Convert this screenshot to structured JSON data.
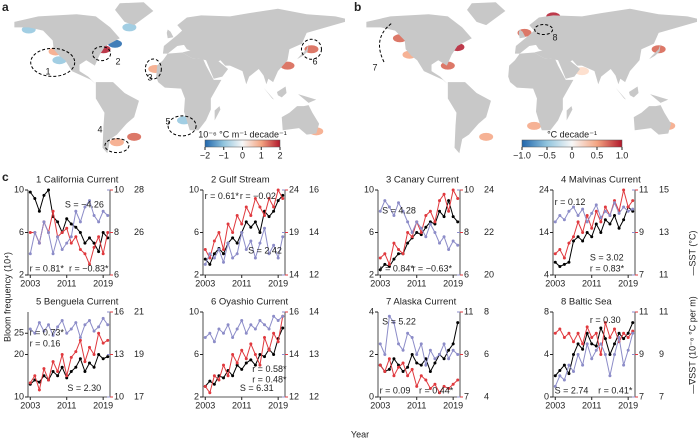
{
  "figure": {
    "panel_label": "c",
    "xlabel": "Year",
    "ylabel": "Bloom frequency (10⁴)",
    "y2label": "—∇SST (10⁻⁶ °C per m)",
    "y3label": "—SST (°C)",
    "y2color": "#e0393e",
    "y3color": "#8c8cc8"
  },
  "maps": [
    {
      "label": "a",
      "regions": [
        "1",
        "2",
        "3",
        "4",
        "5",
        "6"
      ],
      "colorbar": {
        "title": "10⁻⁶ °C m⁻¹ decade⁻¹",
        "lim": [
          -2,
          2
        ],
        "ticks": [
          {
            "value": -2,
            "label": "−2"
          },
          {
            "value": -1,
            "label": "−1"
          },
          0,
          1,
          2
        ]
      }
    },
    {
      "label": "b",
      "regions": [
        "7",
        "8"
      ],
      "colorbar": {
        "title": "°C decade⁻¹",
        "lim": [
          -1,
          1
        ],
        "ticks": [
          {
            "value": -1,
            "label": "−1.0"
          },
          {
            "value": -0.5,
            "label": "−0.5"
          },
          0,
          0.5,
          {
            "value": 1,
            "label": "1.0"
          }
        ]
      }
    }
  ],
  "chart_data": [
    {
      "type": "line",
      "title": "1 California Current",
      "x": [
        2003,
        2004,
        2005,
        2006,
        2007,
        2008,
        2009,
        2010,
        2011,
        2012,
        2013,
        2014,
        2015,
        2016,
        2017,
        2018,
        2019,
        2020
      ],
      "xlim": [
        2002.5,
        2020.5
      ],
      "xticks": [
        2003,
        2011,
        2019
      ],
      "ylim": [
        2,
        10
      ],
      "yticks": [
        2,
        6,
        10
      ],
      "y2lim": [
        6,
        10
      ],
      "y2ticks": [
        6,
        8,
        10
      ],
      "y3lim": [
        24,
        28
      ],
      "y3ticks": [
        26,
        28
      ],
      "series": [
        {
          "color": "#000000",
          "axis": "y",
          "values": [
            9.8,
            9.2,
            8,
            9.5,
            10,
            7.5,
            7,
            6,
            7.3,
            6.8,
            6.5,
            6,
            5,
            5.5,
            5,
            4.2,
            6,
            5.5
          ]
        },
        {
          "color": "#e0393e",
          "axis": "y2",
          "values": [
            8,
            8,
            7.5,
            8.5,
            8,
            9,
            7.8,
            8,
            8.2,
            7.5,
            7.8,
            7.2,
            7,
            6.5,
            7.3,
            7.8,
            7,
            8
          ]
        },
        {
          "color": "#8c8cc8",
          "axis": "y3",
          "values": [
            25,
            26,
            25.5,
            26.5,
            26,
            25,
            25.8,
            25.2,
            25.5,
            25.8,
            27,
            26.5,
            27.2,
            27.5,
            26.8,
            26.5,
            27,
            26.8
          ]
        }
      ],
      "annotations": [
        {
          "text": "S = −4.26",
          "color": "#000000"
        },
        {
          "text": "r = 0.81*",
          "color": "#e0393e"
        },
        {
          "text": "r = −0.83*",
          "color": "#8c8cc8"
        }
      ]
    },
    {
      "type": "line",
      "title": "2 Gulf Stream",
      "x": [
        2003,
        2004,
        2005,
        2006,
        2007,
        2008,
        2009,
        2010,
        2011,
        2012,
        2013,
        2014,
        2015,
        2016,
        2017,
        2018,
        2019,
        2020
      ],
      "xlim": [
        2002.5,
        2020.5
      ],
      "xticks": [
        2003,
        2011,
        2019
      ],
      "ylim": [
        2,
        10
      ],
      "yticks": [
        2,
        6,
        10
      ],
      "y2lim": [
        14,
        24
      ],
      "y2ticks": [
        14,
        19,
        24
      ],
      "y3lim": [
        12,
        16
      ],
      "y3ticks": [
        12,
        14,
        16
      ],
      "series": [
        {
          "color": "#000000",
          "axis": "y",
          "values": [
            3.5,
            3,
            4,
            4.5,
            4,
            5,
            5.5,
            5,
            6,
            7,
            6.5,
            7,
            6,
            8,
            7.5,
            8,
            9,
            9.5
          ]
        },
        {
          "color": "#e0393e",
          "axis": "y2",
          "values": [
            17,
            16,
            18,
            19,
            17,
            20,
            19,
            21,
            20,
            22,
            21,
            23,
            22,
            21,
            23,
            22,
            24,
            23
          ]
        },
        {
          "color": "#8c8cc8",
          "axis": "y3",
          "values": [
            12.5,
            13,
            12.8,
            13.2,
            12.6,
            13.5,
            12.8,
            13,
            14,
            13.2,
            13.6,
            12.8,
            13.5,
            14.2,
            13,
            13.4,
            12.8,
            13.8
          ]
        }
      ],
      "annotations": [
        {
          "text": "r = 0.61*",
          "color": "#e0393e"
        },
        {
          "text": "r = −0.02",
          "color": "#8c8cc8"
        },
        {
          "text": "S = 2.42",
          "color": "#000000"
        }
      ]
    },
    {
      "type": "line",
      "title": "3 Canary Current",
      "x": [
        2003,
        2004,
        2005,
        2006,
        2007,
        2008,
        2009,
        2010,
        2011,
        2012,
        2013,
        2014,
        2015,
        2016,
        2017,
        2018,
        2019,
        2020
      ],
      "xlim": [
        2002.5,
        2020.5
      ],
      "xticks": [
        2003,
        2011,
        2019
      ],
      "ylim": [
        2,
        10
      ],
      "yticks": [
        2,
        6,
        10
      ],
      "y2lim": [
        6,
        10
      ],
      "y2ticks": [
        6,
        8,
        10
      ],
      "y3lim": [
        20,
        24
      ],
      "y3ticks": [
        20,
        22,
        24
      ],
      "series": [
        {
          "color": "#000000",
          "axis": "y",
          "values": [
            2.5,
            3,
            2.8,
            3.5,
            4,
            4,
            5,
            5.5,
            6,
            5.8,
            6.5,
            7,
            6.8,
            8,
            7.5,
            9,
            7.5,
            7
          ]
        },
        {
          "color": "#e0393e",
          "axis": "y2",
          "values": [
            6.8,
            7,
            6.5,
            7.5,
            7.2,
            7,
            8,
            7.8,
            8.5,
            8,
            8.8,
            9,
            8.5,
            9.5,
            9.8,
            9,
            10,
            9.6
          ]
        },
        {
          "color": "#8c8cc8",
          "axis": "y3",
          "values": [
            23,
            23.5,
            23.2,
            22.8,
            23.4,
            23,
            22.5,
            22,
            22.5,
            22.2,
            21.8,
            22.4,
            22,
            21.5,
            21.8,
            21.2,
            21.6,
            21.4
          ]
        }
      ],
      "annotations": [
        {
          "text": "S = 4.28",
          "color": "#000000"
        },
        {
          "text": "r = 0.84*",
          "color": "#e0393e"
        },
        {
          "text": "r = −0.63*",
          "color": "#8c8cc8"
        }
      ]
    },
    {
      "type": "line",
      "title": "4 Malvinas Current",
      "x": [
        2003,
        2004,
        2005,
        2006,
        2007,
        2008,
        2009,
        2010,
        2011,
        2012,
        2013,
        2014,
        2015,
        2016,
        2017,
        2018,
        2019,
        2020
      ],
      "xlim": [
        2002.5,
        2020.5
      ],
      "xticks": [
        2003,
        2011,
        2019
      ],
      "ylim": [
        4,
        24
      ],
      "yticks": [
        4,
        14,
        24
      ],
      "y2lim": [
        7,
        11
      ],
      "y2ticks": [
        7,
        9,
        11
      ],
      "y3lim": [
        11,
        15
      ],
      "y3ticks": [
        11,
        13,
        15
      ],
      "series": [
        {
          "color": "#000000",
          "axis": "y",
          "values": [
            7,
            6,
            6.5,
            7,
            12,
            13,
            12,
            14,
            13,
            16,
            14,
            17,
            16,
            18,
            15,
            17,
            20,
            19
          ]
        },
        {
          "color": "#e0393e",
          "axis": "y2",
          "values": [
            8,
            8.2,
            7.8,
            8.5,
            8.8,
            9.5,
            9,
            9.8,
            9.2,
            10,
            9.5,
            10.2,
            9.8,
            10.5,
            10,
            11,
            10.2,
            10.5
          ]
        },
        {
          "color": "#8c8cc8",
          "axis": "y3",
          "values": [
            13.5,
            13.8,
            13.6,
            14,
            14.2,
            13.8,
            14.1,
            13.5,
            13.9,
            14.3,
            13.7,
            14,
            13.8,
            14.4,
            13.9,
            14.2,
            14,
            14.1
          ]
        }
      ],
      "annotations": [
        {
          "text": "r = 0.12",
          "color": "#8c8cc8"
        },
        {
          "text": "S = 3.02",
          "color": "#000000"
        },
        {
          "text": "r = 0.83*",
          "color": "#e0393e"
        }
      ]
    },
    {
      "type": "line",
      "title": "5 Benguela Current",
      "x": [
        2003,
        2004,
        2005,
        2006,
        2007,
        2008,
        2009,
        2010,
        2011,
        2012,
        2013,
        2014,
        2015,
        2016,
        2017,
        2018,
        2019,
        2020
      ],
      "xlim": [
        2002.5,
        2020.5
      ],
      "xticks": [
        2003,
        2011,
        2019
      ],
      "ylim": [
        10,
        30
      ],
      "yticks": [
        10,
        20,
        25
      ],
      "y2lim": [
        10,
        16
      ],
      "y2ticks": [
        10,
        13,
        16
      ],
      "y3lim": [
        17,
        21
      ],
      "y3ticks": [
        17,
        19,
        21
      ],
      "series": [
        {
          "color": "#000000",
          "axis": "y",
          "values": [
            13,
            14,
            13.5,
            15,
            14,
            16,
            15,
            17,
            14.5,
            16,
            17,
            19,
            16,
            18,
            17,
            20,
            19,
            19.5
          ]
        },
        {
          "color": "#e0393e",
          "axis": "y2",
          "values": [
            11,
            11.5,
            10.5,
            12,
            11.2,
            12.5,
            11.8,
            13,
            11.5,
            12.8,
            13.2,
            14,
            12.5,
            13.5,
            13,
            14.5,
            13.8,
            14
          ]
        },
        {
          "color": "#8c8cc8",
          "axis": "y3",
          "values": [
            20.2,
            20,
            20.5,
            20.1,
            20.4,
            19.9,
            20.3,
            20.6,
            20,
            20.2,
            20.5,
            19.8,
            20.4,
            20.6,
            20.1,
            20.3,
            20.7,
            20.4
          ]
        }
      ],
      "annotations": [
        {
          "text": "r = 0.73*",
          "color": "#e0393e"
        },
        {
          "text": "r = 0.16",
          "color": "#8c8cc8"
        },
        {
          "text": "S = 2.30",
          "color": "#000000"
        }
      ]
    },
    {
      "type": "line",
      "title": "6 Oyashio Current",
      "x": [
        2003,
        2004,
        2005,
        2006,
        2007,
        2008,
        2009,
        2010,
        2011,
        2012,
        2013,
        2014,
        2015,
        2016,
        2017,
        2018,
        2019,
        2020
      ],
      "xlim": [
        2002.5,
        2020.5
      ],
      "xticks": [
        2003,
        2011,
        2019
      ],
      "ylim": [
        2,
        10
      ],
      "yticks": [
        2,
        6,
        10
      ],
      "y2lim": [
        12,
        16
      ],
      "y2ticks": [
        12,
        14,
        16
      ],
      "y3lim": [
        12,
        14
      ],
      "y3ticks": [
        12,
        13,
        14
      ],
      "series": [
        {
          "color": "#000000",
          "axis": "y",
          "values": [
            3,
            3.5,
            3.2,
            4,
            3.8,
            4.5,
            4,
            5,
            4.6,
            5.2,
            5.5,
            5,
            6,
            5.8,
            6.5,
            6,
            7.5,
            8.5
          ]
        },
        {
          "color": "#e0393e",
          "axis": "y2",
          "values": [
            12.5,
            12.2,
            13,
            12.8,
            13.5,
            13,
            14,
            13.6,
            14.2,
            13.8,
            14.5,
            14,
            13.5,
            14.8,
            14.2,
            15,
            14.6,
            15.8
          ]
        },
        {
          "color": "#8c8cc8",
          "axis": "y3",
          "values": [
            13.4,
            13.5,
            13.3,
            13.6,
            13.5,
            13.7,
            13.4,
            13.6,
            13.8,
            13.5,
            13.7,
            13.6,
            13.8,
            13.7,
            13.6,
            13.9,
            13.8,
            13.9
          ]
        }
      ],
      "annotations": [
        {
          "text": "S = 6.31",
          "color": "#000000"
        },
        {
          "text": "r = 0.58*",
          "color": "#e0393e"
        },
        {
          "text": "r = 0.48*",
          "color": "#8c8cc8"
        }
      ]
    },
    {
      "type": "line",
      "title": "7 Alaska Current",
      "x": [
        2003,
        2004,
        2005,
        2006,
        2007,
        2008,
        2009,
        2010,
        2011,
        2012,
        2013,
        2014,
        2015,
        2016,
        2017,
        2018,
        2019,
        2020
      ],
      "xlim": [
        2002.5,
        2020.5
      ],
      "xticks": [
        2003,
        2011,
        2019
      ],
      "ylim": [
        0,
        4
      ],
      "yticks": [
        0,
        2,
        4
      ],
      "y2lim": [
        7,
        11
      ],
      "y2ticks": [
        7,
        9,
        11
      ],
      "y3lim": [
        4,
        8
      ],
      "y3ticks": [
        4,
        6,
        8
      ],
      "series": [
        {
          "color": "#000000",
          "axis": "y",
          "values": [
            1.5,
            1.2,
            1.3,
            1.8,
            1.5,
            1.2,
            1.4,
            2,
            1.6,
            1.5,
            1.8,
            1.2,
            1.6,
            2,
            1.8,
            2.2,
            2.5,
            3.5
          ]
        },
        {
          "color": "#e0393e",
          "axis": "y2",
          "values": [
            8.5,
            8.2,
            8.8,
            8,
            8.4,
            8.6,
            8,
            8.3,
            7.5,
            8,
            7.8,
            7.4,
            7.6,
            7.2,
            7.5,
            7.4,
            7.6,
            7.8
          ]
        },
        {
          "color": "#8c8cc8",
          "axis": "y3",
          "values": [
            6.5,
            6,
            7.8,
            7.5,
            6.5,
            6.2,
            7,
            6.8,
            6,
            6.5,
            5.5,
            6.2,
            5.8,
            6,
            6.5,
            5.8,
            6.2,
            6
          ]
        }
      ],
      "annotations": [
        {
          "text": "S = 5.22",
          "color": "#000000"
        },
        {
          "text": "r = 0.09",
          "color": "#e0393e"
        },
        {
          "text": "r = 0.44*",
          "color": "#8c8cc8"
        }
      ]
    },
    {
      "type": "line",
      "title": "8 Baltic Sea",
      "x": [
        2003,
        2004,
        2005,
        2006,
        2007,
        2008,
        2009,
        2010,
        2011,
        2012,
        2013,
        2014,
        2015,
        2016,
        2017,
        2018,
        2019,
        2020
      ],
      "xlim": [
        2002.5,
        2020.5
      ],
      "xticks": [
        2003,
        2011,
        2019
      ],
      "ylim": [
        0,
        8
      ],
      "yticks": [
        0,
        4,
        8
      ],
      "y2lim": [
        7,
        11
      ],
      "y2ticks": [
        7,
        9,
        11
      ],
      "y3lim": [
        7,
        11
      ],
      "y3ticks": [
        7,
        9,
        11
      ],
      "series": [
        {
          "color": "#000000",
          "axis": "y",
          "values": [
            2,
            2.5,
            3,
            2.2,
            4,
            5,
            4.5,
            6,
            5,
            4.8,
            6.5,
            5.5,
            4,
            5,
            6,
            5.5,
            6,
            7
          ]
        },
        {
          "color": "#e0393e",
          "axis": "y2",
          "values": [
            10,
            10.2,
            9.8,
            10,
            9.6,
            10,
            9.5,
            10.3,
            9.8,
            10,
            9,
            10.5,
            9.8,
            10.2,
            9.6,
            10,
            9.8,
            10.1
          ]
        },
        {
          "color": "#8c8cc8",
          "axis": "y3",
          "values": [
            7.5,
            8,
            7.8,
            8.5,
            8.2,
            9,
            8.5,
            9.5,
            8.8,
            9.2,
            9.5,
            9,
            8,
            9,
            9.8,
            8.5,
            9.2,
            10
          ]
        }
      ],
      "annotations": [
        {
          "text": "r = 0.30",
          "color": "#e0393e"
        },
        {
          "text": "S = 2.74",
          "color": "#000000"
        },
        {
          "text": "r = 0.41*",
          "color": "#8c8cc8"
        }
      ]
    }
  ]
}
